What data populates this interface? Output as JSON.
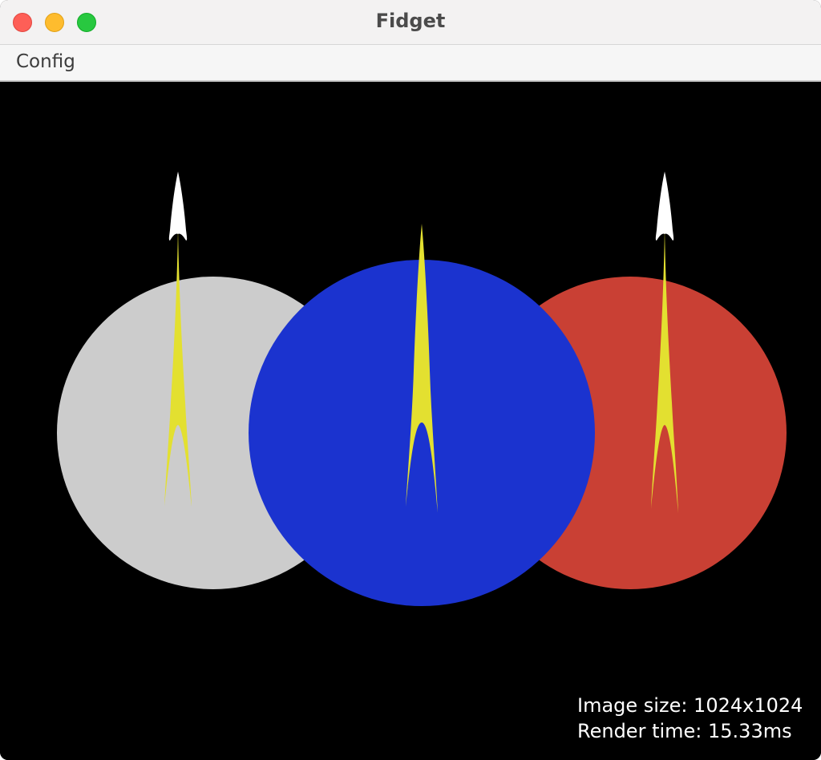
{
  "window": {
    "title": "Fidget"
  },
  "menu": {
    "items": [
      {
        "label": "Config"
      }
    ]
  },
  "stats": {
    "image_size": "Image size: 1024x1024",
    "render_time": "Render time: 15.33ms"
  },
  "colors": {
    "left_circle": "#cccccc",
    "center_circle": "#1b33cf",
    "right_circle": "#c94034",
    "flame": "#e3e030",
    "tip": "#ffffff",
    "background": "#000000"
  }
}
